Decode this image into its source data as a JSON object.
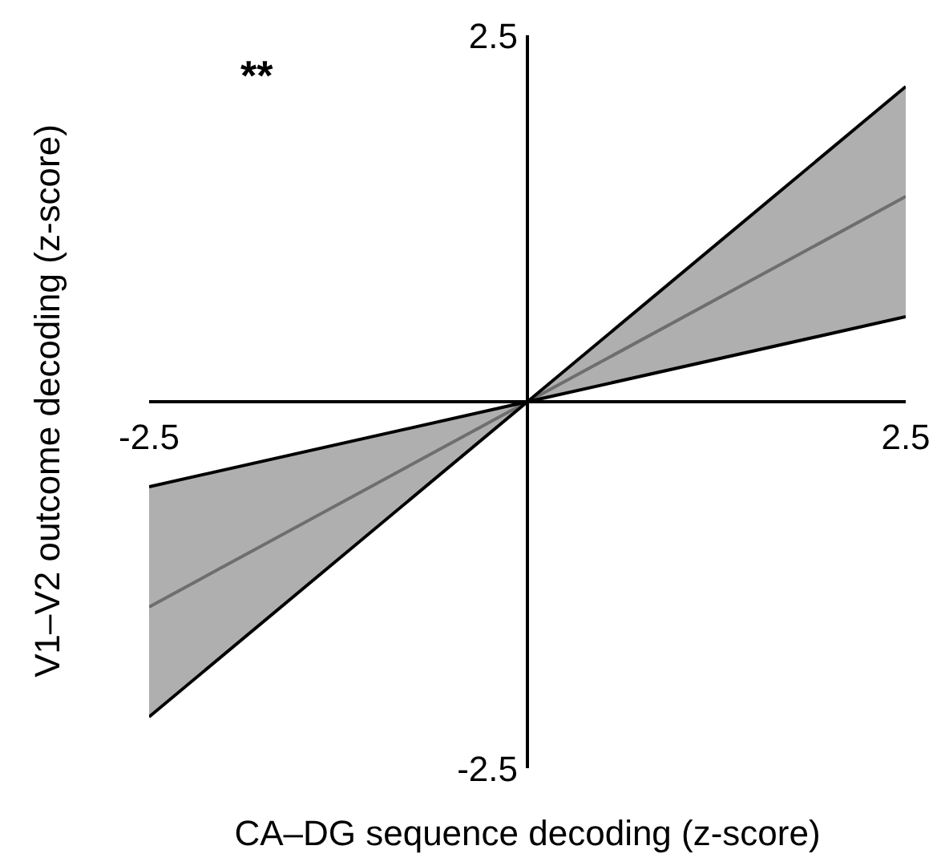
{
  "chart_data": {
    "type": "line",
    "xlabel": "CA–DG sequence decoding (z-score)",
    "ylabel": "V1–V2 outcome decoding (z-score)",
    "x": [
      -2.5,
      0,
      2.5
    ],
    "series": [
      {
        "color": "#6e6e6e",
        "values": [
          -1.4,
          0,
          1.4
        ],
        "lower": [
          -2.15,
          0,
          0.58
        ],
        "upper": [
          -0.58,
          0,
          2.15
        ]
      },
      {
        "color": "#000000",
        "values": [
          -2.15,
          0,
          2.15
        ]
      },
      {
        "color": "#000000",
        "values": [
          -0.58,
          0,
          0.58
        ]
      }
    ],
    "xlim": [
      -2.5,
      2.5
    ],
    "ylim": [
      -2.5,
      2.5
    ],
    "xticks": [
      -2.5,
      2.5
    ],
    "yticks": [
      -2.5,
      2.5
    ],
    "annotations": [
      "**"
    ],
    "grid": false,
    "legend": false,
    "marker": "none",
    "line_style": "solid"
  }
}
